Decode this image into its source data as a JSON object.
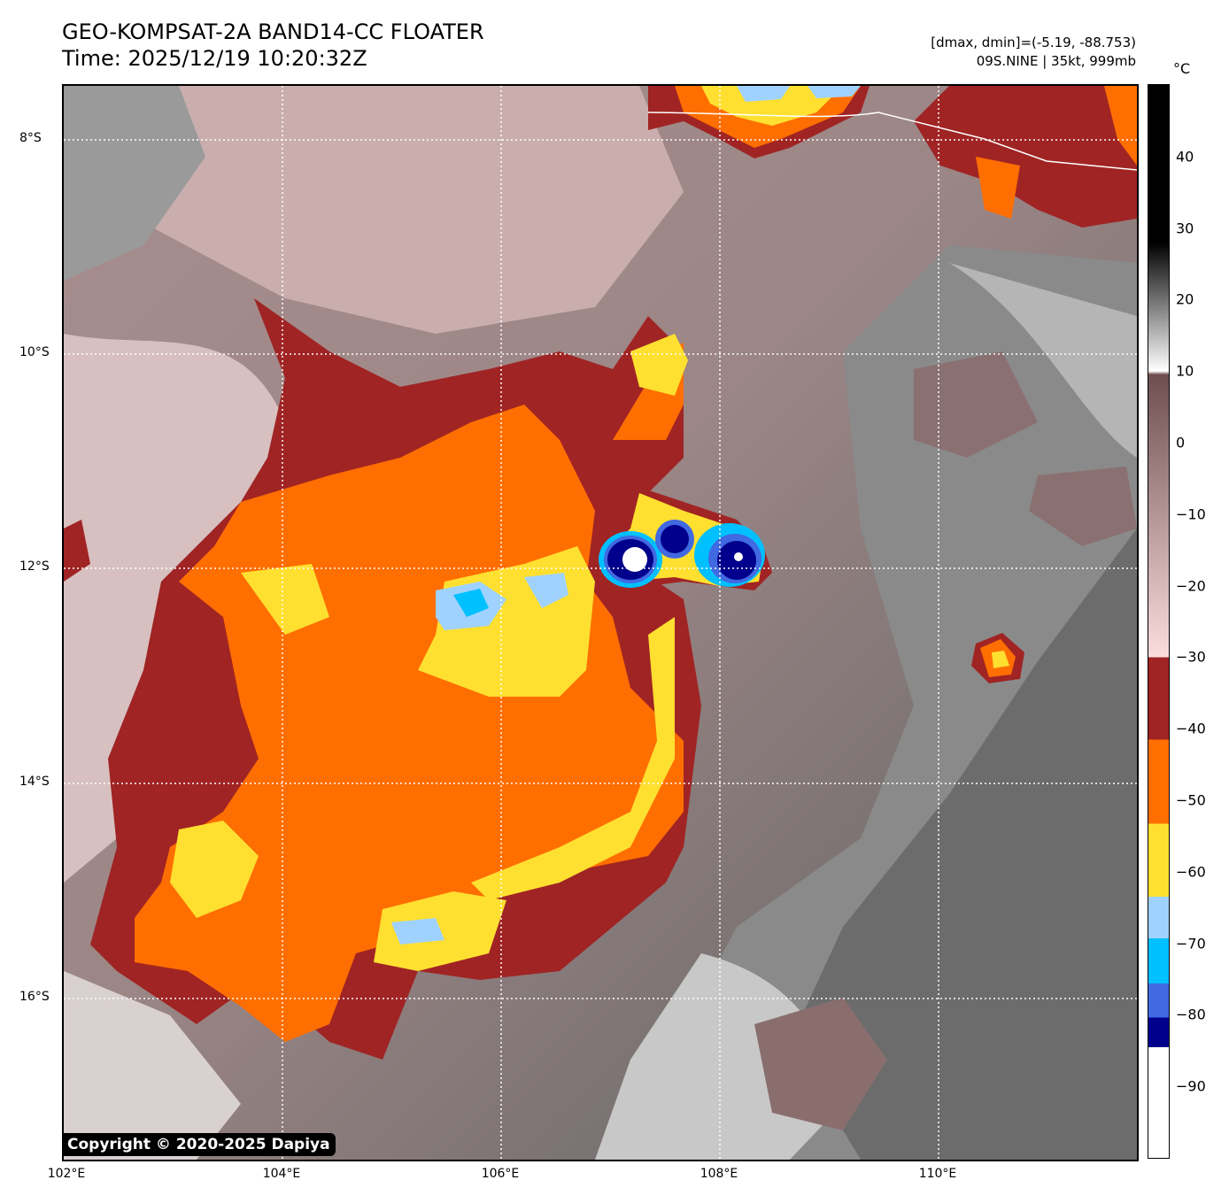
{
  "header": {
    "title_line1": "GEO-KOMPSAT-2A BAND14-CC FLOATER",
    "title_line2": "Time: 2025/12/19 10:20:32Z",
    "range_text": "[dmax, dmin]=(-5.19, -88.753)",
    "storm_text": "09S.NINE | 35kt, 999mb"
  },
  "map": {
    "lat_labels": [
      "8°S",
      "10°S",
      "12°S",
      "14°S",
      "16°S"
    ],
    "lon_labels": [
      "102°E",
      "104°E",
      "106°E",
      "108°E",
      "110°E"
    ],
    "copyright": "Copyright © 2020-2025 Dapiya"
  },
  "colorbar": {
    "unit": "°C",
    "range": [
      50,
      -100
    ],
    "ticks": [
      "40",
      "30",
      "20",
      "10",
      "0",
      "−10",
      "−20",
      "−30",
      "−40",
      "−50",
      "−60",
      "−70",
      "−80",
      "−90"
    ],
    "tick_values": [
      40,
      30,
      20,
      10,
      0,
      -10,
      -20,
      -30,
      -40,
      -50,
      -60,
      -70,
      -80,
      -90
    ],
    "stops": [
      {
        "v": 50,
        "c": "#000000"
      },
      {
        "v": 28,
        "c": "#000000"
      },
      {
        "v": 10,
        "c": "#ffffff"
      },
      {
        "v": 9.5,
        "c": "#6e4e4e"
      },
      {
        "v": -30,
        "c": "#fadede"
      },
      {
        "v": -30.01,
        "c": "#a02424"
      },
      {
        "v": -41.5,
        "c": "#a02424"
      },
      {
        "v": -41.51,
        "c": "#ff6e00"
      },
      {
        "v": -53.3,
        "c": "#ff6e00"
      },
      {
        "v": -53.31,
        "c": "#ffe030"
      },
      {
        "v": -63.5,
        "c": "#ffe030"
      },
      {
        "v": -63.51,
        "c": "#a0d2ff"
      },
      {
        "v": -69.3,
        "c": "#a0d2ff"
      },
      {
        "v": -69.31,
        "c": "#00c0ff"
      },
      {
        "v": -75.6,
        "c": "#00c0ff"
      },
      {
        "v": -75.61,
        "c": "#4169e1"
      },
      {
        "v": -80.4,
        "c": "#4169e1"
      },
      {
        "v": -80.41,
        "c": "#00008c"
      },
      {
        "v": -84.5,
        "c": "#00008c"
      },
      {
        "v": -84.51,
        "c": "#ffffff"
      },
      {
        "v": -100,
        "c": "#ffffff"
      }
    ]
  }
}
